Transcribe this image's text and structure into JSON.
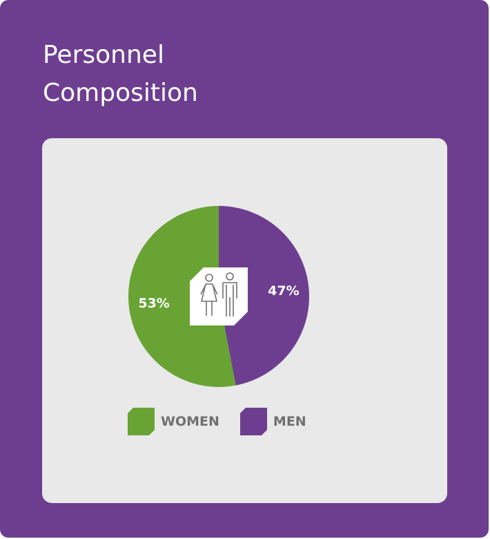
{
  "title": {
    "line1": "Personnel",
    "line2": "Composition"
  },
  "colors": {
    "background": "#6d3e8f",
    "panel": "#e8e9e8",
    "women": "#68a334",
    "men": "#6d3e8f",
    "label_text": "#ffffff",
    "legend_text": "#6f6f6f"
  },
  "center_icon": "women-and-men-icon",
  "chart_data": {
    "type": "pie",
    "title": "Personnel Composition",
    "slices": [
      {
        "label": "WOMEN",
        "value": 53,
        "display": "53%",
        "color": "#68a334"
      },
      {
        "label": "MEN",
        "value": 47,
        "display": "47%",
        "color": "#6d3e8f"
      }
    ],
    "legend_position": "bottom"
  }
}
